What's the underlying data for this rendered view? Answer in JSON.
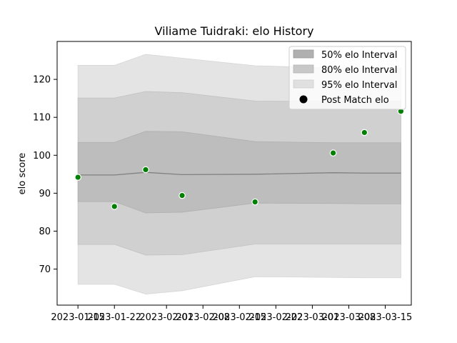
{
  "chart_data": {
    "type": "area",
    "title": "Viliame Tuidraki: elo History",
    "xlabel": "",
    "ylabel": "elo score",
    "xlim": [
      "2023-01-11",
      "2023-03-20"
    ],
    "ylim": [
      60.5,
      130
    ],
    "x_ticks": [
      "2023-01-15",
      "2023-01-22",
      "2023-02-01",
      "2023-02-08",
      "2023-02-15",
      "2023-02-22",
      "2023-03-01",
      "2023-03-08",
      "2023-03-15"
    ],
    "x_tick_labels": [
      "2023-01-15",
      "2023-01-22",
      "2023-02-01",
      "2023-02-08",
      "2023-02-15",
      "2023-02-22",
      "2023-03-01",
      "2023-03-08",
      "2023-03-15"
    ],
    "y_ticks": [
      70,
      80,
      90,
      100,
      110,
      120
    ],
    "grid": false,
    "legend_position": "top-right",
    "colors": {
      "band95": "#e4e4e4",
      "band80": "#d0d0d0",
      "band50": "#bdbdbd",
      "mean_line": "#808080",
      "points": "#008000",
      "legend50": "#b0b0b0",
      "legend80": "#c8c8c8",
      "legend95": "#e0e0e0",
      "legend_marker": "#000000"
    },
    "x": [
      "2023-01-15",
      "2023-01-22",
      "2023-01-28",
      "2023-02-04",
      "2023-02-18",
      "2023-03-05",
      "2023-03-11",
      "2023-03-18"
    ],
    "series": [
      {
        "name": "Post Match elo",
        "role": "points",
        "values": [
          94.2,
          86.5,
          96.2,
          89.4,
          87.7,
          100.6,
          106.0,
          111.6
        ]
      },
      {
        "role": "mean",
        "values": [
          94.8,
          94.8,
          95.5,
          94.9,
          95.0,
          95.4,
          95.3,
          95.3
        ]
      },
      {
        "name": "50% elo Interval",
        "role": "band",
        "lower": [
          87.8,
          87.8,
          84.8,
          85.0,
          87.4,
          87.3,
          87.2,
          87.2
        ],
        "upper": [
          103.4,
          103.4,
          106.3,
          106.2,
          103.6,
          103.3,
          103.3,
          103.3
        ]
      },
      {
        "name": "80% elo Interval",
        "role": "band",
        "lower": [
          76.5,
          76.5,
          73.7,
          73.8,
          76.6,
          76.6,
          76.6,
          76.6
        ],
        "upper": [
          115.1,
          115.1,
          116.8,
          116.5,
          114.3,
          114.2,
          114.2,
          114.2
        ]
      },
      {
        "name": "95% elo Interval",
        "role": "band",
        "lower": [
          66.0,
          66.0,
          63.4,
          64.3,
          68.0,
          67.8,
          67.7,
          67.7
        ],
        "upper": [
          123.7,
          123.7,
          126.6,
          125.6,
          123.6,
          123.0,
          123.0,
          123.0
        ]
      }
    ],
    "legend": [
      "50% elo Interval",
      "80% elo Interval",
      "95% elo Interval",
      "Post Match elo"
    ]
  }
}
